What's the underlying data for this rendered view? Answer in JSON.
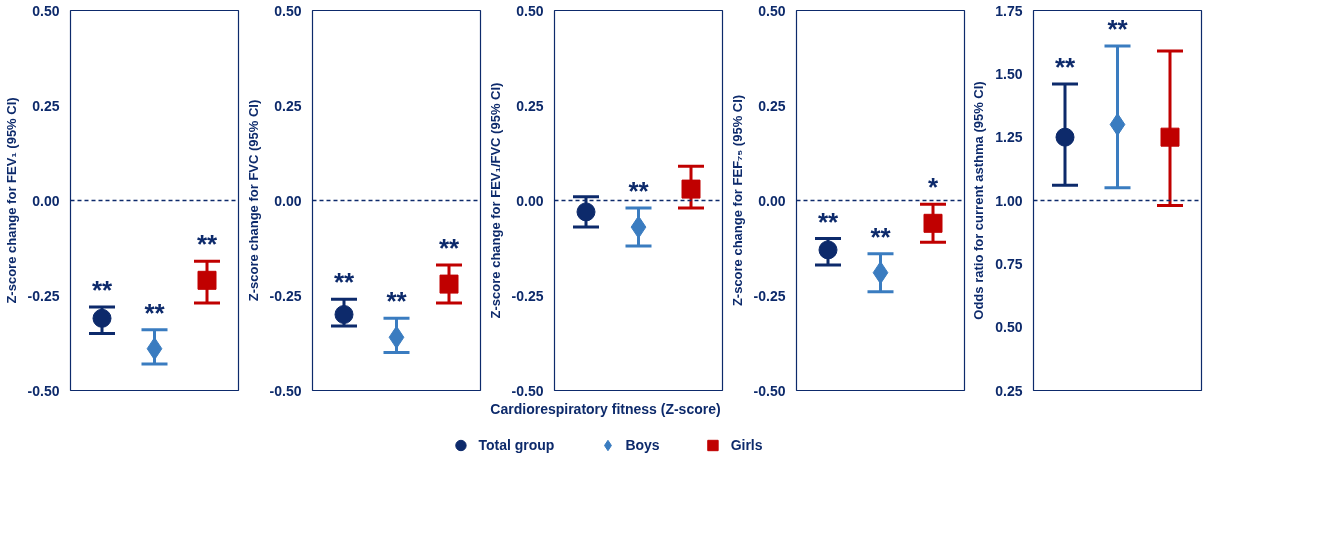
{
  "chart_data": [
    {
      "type": "scatter",
      "ylabel": "Z-score change for FEV₁ (95% CI)",
      "categories": [
        null,
        null,
        null
      ],
      "ylim": [
        -0.5,
        0.5
      ],
      "yticks": [
        {
          "value": -0.5,
          "label": "-0.50"
        },
        {
          "value": -0.25,
          "label": "-0.25"
        },
        {
          "value": 0,
          "label": "0.00"
        },
        {
          "value": 0.25,
          "label": "0.25"
        },
        {
          "value": 0.5,
          "label": "0.50"
        }
      ],
      "grid": false,
      "legend": false,
      "ref_lines": [
        {
          "axis": "y",
          "value": 0,
          "color": "#0d2a6b",
          "line_style": "dashed"
        }
      ],
      "series": [
        {
          "color": "#0d2a6b",
          "marker": "circle",
          "values": [
            -0.31,
            null,
            null
          ],
          "errors": [
            [
              -0.35,
              -0.28
            ],
            null,
            null
          ],
          "value_labels": [
            "**",
            null,
            null
          ]
        },
        {
          "color": "#3a7cc0",
          "marker": "diamond",
          "values": [
            null,
            -0.39,
            null
          ],
          "errors": [
            null,
            [
              -0.43,
              -0.34
            ],
            null
          ],
          "value_labels": [
            null,
            "**",
            null
          ]
        },
        {
          "color": "#c00000",
          "marker": "square",
          "values": [
            null,
            null,
            -0.21
          ],
          "errors": [
            null,
            null,
            [
              -0.27,
              -0.16
            ]
          ],
          "value_labels": [
            null,
            null,
            "**"
          ]
        }
      ]
    },
    {
      "type": "scatter",
      "ylabel": "Z-score change for FVC (95% CI)",
      "categories": [
        null,
        null,
        null
      ],
      "ylim": [
        -0.5,
        0.5
      ],
      "yticks": [
        {
          "value": -0.5,
          "label": "-0.50"
        },
        {
          "value": -0.25,
          "label": "-0.25"
        },
        {
          "value": 0,
          "label": "0.00"
        },
        {
          "value": 0.25,
          "label": "0.25"
        },
        {
          "value": 0.5,
          "label": "0.50"
        }
      ],
      "grid": false,
      "legend": false,
      "ref_lines": [
        {
          "axis": "y",
          "value": 0,
          "color": "#0d2a6b",
          "line_style": "dashed"
        }
      ],
      "series": [
        {
          "color": "#0d2a6b",
          "marker": "circle",
          "values": [
            -0.3,
            null,
            null
          ],
          "errors": [
            [
              -0.33,
              -0.26
            ],
            null,
            null
          ],
          "value_labels": [
            "**",
            null,
            null
          ]
        },
        {
          "color": "#3a7cc0",
          "marker": "diamond",
          "values": [
            null,
            -0.36,
            null
          ],
          "errors": [
            null,
            [
              -0.4,
              -0.31
            ],
            null
          ],
          "value_labels": [
            null,
            "**",
            null
          ]
        },
        {
          "color": "#c00000",
          "marker": "square",
          "values": [
            null,
            null,
            -0.22
          ],
          "errors": [
            null,
            null,
            [
              -0.27,
              -0.17
            ]
          ],
          "value_labels": [
            null,
            null,
            "**"
          ]
        }
      ]
    },
    {
      "type": "scatter",
      "ylabel": "Z-score change for FEV₁/FVC (95% CI)",
      "xlabel": "Cardiorespiratory fitness (Z-score)",
      "categories": [
        null,
        null,
        null
      ],
      "ylim": [
        -0.5,
        0.5
      ],
      "yticks": [
        {
          "value": -0.5,
          "label": "-0.50"
        },
        {
          "value": -0.25,
          "label": "-0.25"
        },
        {
          "value": 0,
          "label": "0.00"
        },
        {
          "value": 0.25,
          "label": "0.25"
        },
        {
          "value": 0.5,
          "label": "0.50"
        }
      ],
      "grid": false,
      "legend": "bottom",
      "ref_lines": [
        {
          "axis": "y",
          "value": 0,
          "color": "#0d2a6b",
          "line_style": "dashed"
        }
      ],
      "series": [
        {
          "name": "Total group",
          "color": "#0d2a6b",
          "marker": "circle",
          "values": [
            -0.03,
            null,
            null
          ],
          "errors": [
            [
              -0.07,
              0.01
            ],
            null,
            null
          ],
          "value_labels": [
            null,
            null,
            null
          ]
        },
        {
          "name": "Boys",
          "color": "#3a7cc0",
          "marker": "diamond",
          "values": [
            null,
            -0.07,
            null
          ],
          "errors": [
            null,
            [
              -0.12,
              -0.02
            ],
            null
          ],
          "value_labels": [
            null,
            "**",
            null
          ]
        },
        {
          "name": "Girls",
          "color": "#c00000",
          "marker": "square",
          "values": [
            null,
            null,
            0.03
          ],
          "errors": [
            null,
            null,
            [
              -0.02,
              0.09
            ]
          ],
          "value_labels": [
            null,
            null,
            null
          ]
        }
      ]
    },
    {
      "type": "scatter",
      "ylabel": "Z-score change for FEF₇₅ (95% CI)",
      "categories": [
        null,
        null,
        null
      ],
      "ylim": [
        -0.5,
        0.5
      ],
      "yticks": [
        {
          "value": -0.5,
          "label": "-0.50"
        },
        {
          "value": -0.25,
          "label": "-0.25"
        },
        {
          "value": 0,
          "label": "0.00"
        },
        {
          "value": 0.25,
          "label": "0.25"
        },
        {
          "value": 0.5,
          "label": "0.50"
        }
      ],
      "grid": false,
      "legend": false,
      "ref_lines": [
        {
          "axis": "y",
          "value": 0,
          "color": "#0d2a6b",
          "line_style": "dashed"
        }
      ],
      "series": [
        {
          "color": "#0d2a6b",
          "marker": "circle",
          "values": [
            -0.13,
            null,
            null
          ],
          "errors": [
            [
              -0.17,
              -0.1
            ],
            null,
            null
          ],
          "value_labels": [
            "**",
            null,
            null
          ]
        },
        {
          "color": "#3a7cc0",
          "marker": "diamond",
          "values": [
            null,
            -0.19,
            null
          ],
          "errors": [
            null,
            [
              -0.24,
              -0.14
            ],
            null
          ],
          "value_labels": [
            null,
            "**",
            null
          ]
        },
        {
          "color": "#c00000",
          "marker": "square",
          "values": [
            null,
            null,
            -0.06
          ],
          "errors": [
            null,
            null,
            [
              -0.11,
              -0.01
            ]
          ],
          "value_labels": [
            null,
            null,
            "*"
          ]
        }
      ]
    },
    {
      "type": "scatter",
      "ylabel": "Odds ratio for current asthma (95% CI)",
      "categories": [
        null,
        null,
        null
      ],
      "ylim": [
        0.25,
        1.75
      ],
      "yticks": [
        {
          "value": 0.25,
          "label": "0.25"
        },
        {
          "value": 0.5,
          "label": "0.50"
        },
        {
          "value": 0.75,
          "label": "0.75"
        },
        {
          "value": 1,
          "label": "1.00"
        },
        {
          "value": 1.25,
          "label": "1.25"
        },
        {
          "value": 1.5,
          "label": "1.50"
        },
        {
          "value": 1.75,
          "label": "1.75"
        }
      ],
      "grid": false,
      "legend": false,
      "ref_lines": [
        {
          "axis": "y",
          "value": 1,
          "color": "#0d2a6b",
          "line_style": "dashed"
        }
      ],
      "series": [
        {
          "color": "#0d2a6b",
          "marker": "circle",
          "values": [
            1.25,
            null,
            null
          ],
          "errors": [
            [
              1.06,
              1.46
            ],
            null,
            null
          ],
          "value_labels": [
            "**",
            null,
            null
          ]
        },
        {
          "color": "#3a7cc0",
          "marker": "diamond",
          "values": [
            null,
            1.3,
            null
          ],
          "errors": [
            null,
            [
              1.05,
              1.61
            ],
            null
          ],
          "value_labels": [
            null,
            "**",
            null
          ]
        },
        {
          "color": "#c00000",
          "marker": "square",
          "values": [
            null,
            null,
            1.25
          ],
          "errors": [
            null,
            null,
            [
              0.98,
              1.59
            ]
          ],
          "value_labels": [
            null,
            null,
            null
          ]
        }
      ]
    }
  ]
}
